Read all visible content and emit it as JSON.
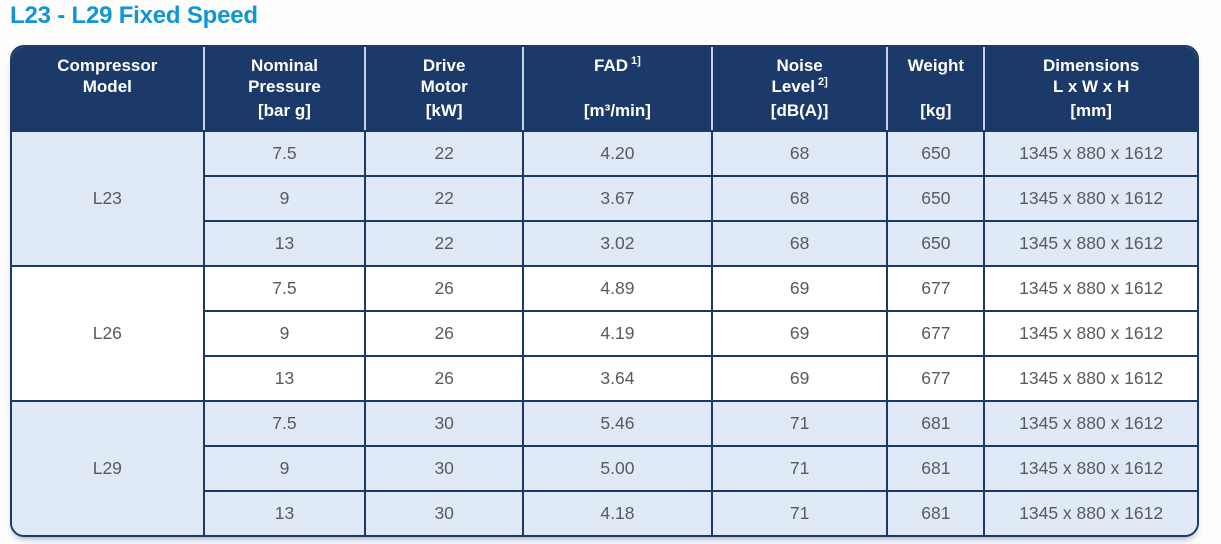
{
  "page": {
    "title": "L23 - L29 Fixed Speed"
  },
  "colors": {
    "header_bg": "#1b3a6a",
    "header_text": "#ffffff",
    "header_divider": "#c5d3e3",
    "row_shaded_bg": "#e0e9f6",
    "row_white_bg": "#ffffff",
    "border": "#1b3a6a",
    "title_text": "#1195d4",
    "body_text": "#595a5c"
  },
  "table": {
    "columns": [
      {
        "line1": "Compressor",
        "line2": "Model",
        "sup": "",
        "unit": ""
      },
      {
        "line1": "Nominal",
        "line2": "Pressure",
        "sup": "",
        "unit": "[bar g]"
      },
      {
        "line1": "Drive",
        "line2": "Motor",
        "sup": "",
        "unit": "[kW]"
      },
      {
        "line1": "FAD",
        "line2": "",
        "sup": "1]",
        "unit": "[m³/min]"
      },
      {
        "line1": "Noise",
        "line2": "Level",
        "sup": "2]",
        "unit": "[dB(A)]"
      },
      {
        "line1": "Weight",
        "line2": "",
        "sup": "",
        "unit": "[kg]"
      },
      {
        "line1": "Dimensions",
        "line2": "L x W x H",
        "sup": "",
        "unit": "[mm]"
      }
    ],
    "groups": [
      {
        "model": "L23",
        "shaded": true,
        "rows": [
          {
            "pressure": "7.5",
            "motor": "22",
            "fad": "4.20",
            "noise": "68",
            "weight": "650",
            "dimensions": "1345 x 880 x 1612"
          },
          {
            "pressure": "9",
            "motor": "22",
            "fad": "3.67",
            "noise": "68",
            "weight": "650",
            "dimensions": "1345 x 880 x 1612"
          },
          {
            "pressure": "13",
            "motor": "22",
            "fad": "3.02",
            "noise": "68",
            "weight": "650",
            "dimensions": "1345 x 880 x 1612"
          }
        ]
      },
      {
        "model": "L26",
        "shaded": false,
        "rows": [
          {
            "pressure": "7.5",
            "motor": "26",
            "fad": "4.89",
            "noise": "69",
            "weight": "677",
            "dimensions": "1345 x 880 x 1612"
          },
          {
            "pressure": "9",
            "motor": "26",
            "fad": "4.19",
            "noise": "69",
            "weight": "677",
            "dimensions": "1345 x 880 x 1612"
          },
          {
            "pressure": "13",
            "motor": "26",
            "fad": "3.64",
            "noise": "69",
            "weight": "677",
            "dimensions": "1345 x 880 x 1612"
          }
        ]
      },
      {
        "model": "L29",
        "shaded": true,
        "rows": [
          {
            "pressure": "7.5",
            "motor": "30",
            "fad": "5.46",
            "noise": "71",
            "weight": "681",
            "dimensions": "1345 x 880 x 1612"
          },
          {
            "pressure": "9",
            "motor": "30",
            "fad": "5.00",
            "noise": "71",
            "weight": "681",
            "dimensions": "1345 x 880 x 1612"
          },
          {
            "pressure": "13",
            "motor": "30",
            "fad": "4.18",
            "noise": "71",
            "weight": "681",
            "dimensions": "1345 x 880 x 1612"
          }
        ]
      }
    ]
  }
}
